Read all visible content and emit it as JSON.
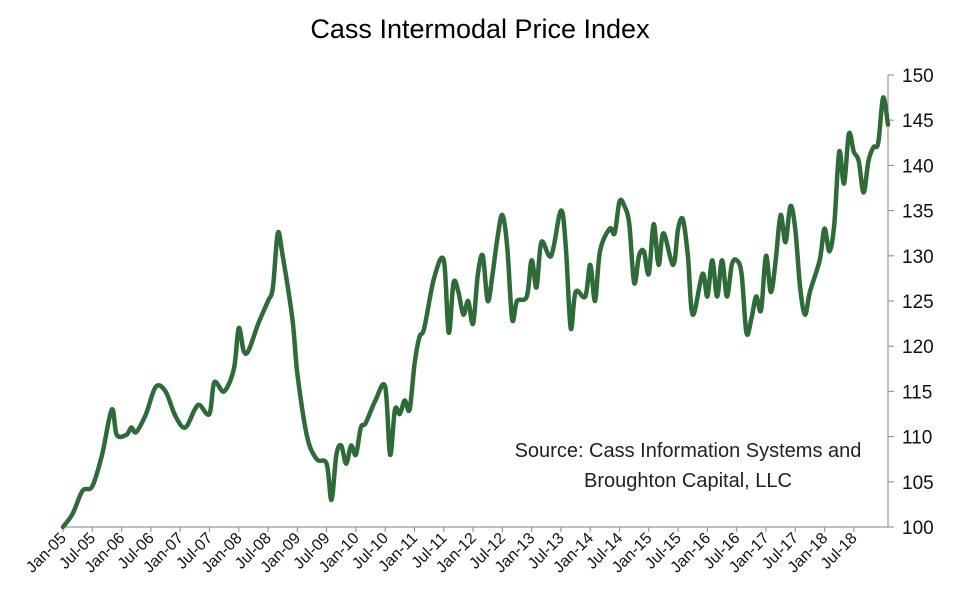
{
  "chart_data": {
    "type": "line",
    "title": "Cass Intermodal Price Index",
    "xlabel": "",
    "ylabel": "",
    "ylim": [
      100,
      150
    ],
    "y_ticks": [
      "100",
      "105",
      "110",
      "115",
      "120",
      "125",
      "130",
      "135",
      "140",
      "145",
      "150"
    ],
    "x_tick_labels": [
      "Jan-05",
      "Jul-05",
      "Jan-06",
      "Jul-06",
      "Jan-07",
      "Jul-07",
      "Jan-08",
      "Jul-08",
      "Jan-09",
      "Jul-09",
      "Jan-10",
      "Jul-10",
      "Jan-11",
      "Jul-11",
      "Jan-12",
      "Jul-12",
      "Jan-13",
      "Jul-13",
      "Jan-14",
      "Jul-14",
      "Jan-15",
      "Jul-15",
      "Jan-16",
      "Jul-16",
      "Jan-17",
      "Jul-17",
      "Jan-18",
      "Jul-18"
    ],
    "grid": false,
    "legend": "none",
    "line_color": "#2e6b38",
    "annotation": [
      "Source: Cass Information Systems and",
      "Broughton Capital, LLC"
    ],
    "series": [
      {
        "points": [
          [
            "2005-01",
            100.0
          ],
          [
            "2005-03",
            101.5
          ],
          [
            "2005-05",
            104.0
          ],
          [
            "2005-07",
            104.5
          ],
          [
            "2005-09",
            108.0
          ],
          [
            "2005-11",
            113.0
          ],
          [
            "2005-12",
            110.2
          ],
          [
            "2006-02",
            110.2
          ],
          [
            "2006-03",
            111.0
          ],
          [
            "2006-04",
            110.5
          ],
          [
            "2006-06",
            112.5
          ],
          [
            "2006-08",
            115.5
          ],
          [
            "2006-10",
            115.0
          ],
          [
            "2006-12",
            112.3
          ],
          [
            "2007-02",
            111.0
          ],
          [
            "2007-04",
            113.0
          ],
          [
            "2007-05",
            113.5
          ],
          [
            "2007-07",
            112.5
          ],
          [
            "2007-08",
            116.0
          ],
          [
            "2007-10",
            115.0
          ],
          [
            "2007-12",
            117.5
          ],
          [
            "2008-01",
            122.0
          ],
          [
            "2008-02",
            119.5
          ],
          [
            "2008-03",
            119.5
          ],
          [
            "2008-05",
            122.5
          ],
          [
            "2008-07",
            125.0
          ],
          [
            "2008-08",
            126.5
          ],
          [
            "2008-09",
            132.5
          ],
          [
            "2008-10",
            130.0
          ],
          [
            "2008-12",
            123.0
          ],
          [
            "2009-01",
            117.0
          ],
          [
            "2009-03",
            110.0
          ],
          [
            "2009-05",
            107.5
          ],
          [
            "2009-07",
            107.0
          ],
          [
            "2009-08",
            103.0
          ],
          [
            "2009-09",
            108.0
          ],
          [
            "2009-10",
            109.0
          ],
          [
            "2009-11",
            107.0
          ],
          [
            "2009-12",
            109.0
          ],
          [
            "2010-01",
            108.0
          ],
          [
            "2010-02",
            111.0
          ],
          [
            "2010-03",
            111.5
          ],
          [
            "2010-05",
            114.0
          ],
          [
            "2010-07",
            115.5
          ],
          [
            "2010-08",
            108.0
          ],
          [
            "2010-09",
            113.0
          ],
          [
            "2010-10",
            112.5
          ],
          [
            "2010-11",
            114.0
          ],
          [
            "2010-12",
            113.0
          ],
          [
            "2011-01",
            118.0
          ],
          [
            "2011-02",
            121.0
          ],
          [
            "2011-03",
            122.0
          ],
          [
            "2011-05",
            127.5
          ],
          [
            "2011-07",
            129.5
          ],
          [
            "2011-08",
            121.5
          ],
          [
            "2011-09",
            127.0
          ],
          [
            "2011-10",
            126.0
          ],
          [
            "2011-11",
            123.5
          ],
          [
            "2011-12",
            125.0
          ],
          [
            "2012-01",
            122.5
          ],
          [
            "2012-02",
            128.0
          ],
          [
            "2012-03",
            130.0
          ],
          [
            "2012-04",
            125.0
          ],
          [
            "2012-05",
            128.0
          ],
          [
            "2012-06",
            132.0
          ],
          [
            "2012-07",
            134.5
          ],
          [
            "2012-08",
            131.0
          ],
          [
            "2012-09",
            123.0
          ],
          [
            "2012-10",
            125.0
          ],
          [
            "2012-12",
            125.5
          ],
          [
            "2013-01",
            129.5
          ],
          [
            "2013-02",
            126.5
          ],
          [
            "2013-03",
            131.5
          ],
          [
            "2013-05",
            130.0
          ],
          [
            "2013-07",
            135.0
          ],
          [
            "2013-08",
            131.0
          ],
          [
            "2013-09",
            122.0
          ],
          [
            "2013-10",
            126.0
          ],
          [
            "2013-12",
            125.5
          ],
          [
            "2014-01",
            129.0
          ],
          [
            "2014-02",
            125.0
          ],
          [
            "2014-03",
            130.5
          ],
          [
            "2014-05",
            133.0
          ],
          [
            "2014-06",
            132.5
          ],
          [
            "2014-07",
            136.0
          ],
          [
            "2014-08",
            135.5
          ],
          [
            "2014-09",
            133.5
          ],
          [
            "2014-10",
            127.0
          ],
          [
            "2014-11",
            130.0
          ],
          [
            "2014-12",
            130.5
          ],
          [
            "2015-01",
            128.0
          ],
          [
            "2015-02",
            133.5
          ],
          [
            "2015-03",
            129.0
          ],
          [
            "2015-04",
            132.5
          ],
          [
            "2015-06",
            129.0
          ],
          [
            "2015-07",
            133.0
          ],
          [
            "2015-08",
            134.0
          ],
          [
            "2015-09",
            130.0
          ],
          [
            "2015-10",
            123.5
          ],
          [
            "2015-12",
            128.0
          ],
          [
            "2016-01",
            125.5
          ],
          [
            "2016-02",
            129.5
          ],
          [
            "2016-03",
            125.5
          ],
          [
            "2016-04",
            129.5
          ],
          [
            "2016-05",
            125.5
          ],
          [
            "2016-06",
            129.0
          ],
          [
            "2016-07",
            129.5
          ],
          [
            "2016-08",
            128.0
          ],
          [
            "2016-09",
            121.5
          ],
          [
            "2016-10",
            123.0
          ],
          [
            "2016-11",
            125.5
          ],
          [
            "2016-12",
            124.0
          ],
          [
            "2017-01",
            130.0
          ],
          [
            "2017-02",
            126.0
          ],
          [
            "2017-03",
            129.5
          ],
          [
            "2017-04",
            134.5
          ],
          [
            "2017-05",
            131.5
          ],
          [
            "2017-06",
            135.5
          ],
          [
            "2017-07",
            133.0
          ],
          [
            "2017-08",
            126.5
          ],
          [
            "2017-09",
            123.5
          ],
          [
            "2017-10",
            126.0
          ],
          [
            "2017-12",
            129.5
          ],
          [
            "2018-01",
            133.0
          ],
          [
            "2018-02",
            130.5
          ],
          [
            "2018-03",
            133.5
          ],
          [
            "2018-04",
            141.5
          ],
          [
            "2018-05",
            138.0
          ],
          [
            "2018-06",
            143.5
          ],
          [
            "2018-07",
            141.5
          ],
          [
            "2018-08",
            140.5
          ],
          [
            "2018-09",
            137.0
          ],
          [
            "2018-10",
            140.5
          ],
          [
            "2018-11",
            142.0
          ],
          [
            "2018-12",
            142.5
          ],
          [
            "2019-01",
            147.5
          ],
          [
            "2019-02",
            144.5
          ]
        ]
      }
    ]
  }
}
